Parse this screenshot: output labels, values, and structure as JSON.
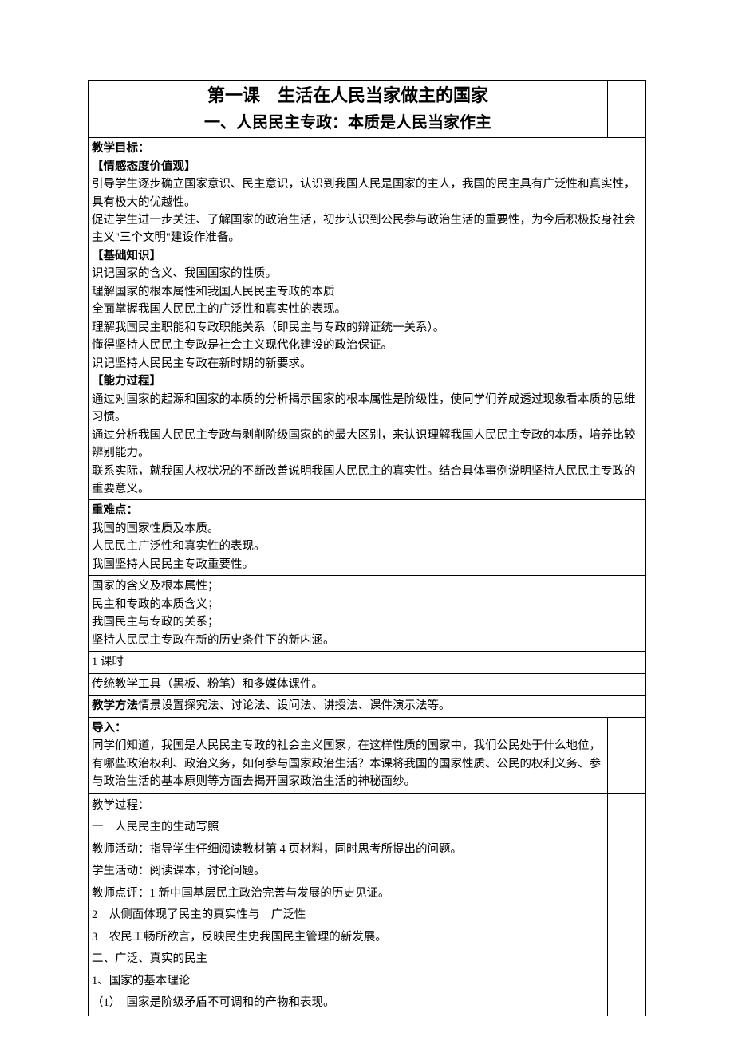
{
  "title": {
    "line1": "第一课　生活在人民当家做主的国家",
    "line2": "一、人民民主专政：本质是人民当家作主"
  },
  "sections": {
    "goals_heading": "教学目标：",
    "attitude_heading": "【情感态度价值观】",
    "attitude_p1": "引导学生逐步确立国家意识、民主意识，认识到我国人民是国家的主人，我国的民主具有广泛性和真实性，具有极大的优越性。",
    "attitude_p2": "促进学生进一步关注、了解国家的政治生活，初步认识到公民参与政治生活的重要性，为今后积极投身社会主义\"三个文明\"建设作准备。",
    "basic_heading": "【基础知识】",
    "basic_p1": "识记国家的含义、我国国家的性质。",
    "basic_p2": "理解国家的根本属性和我国人民民主专政的本质",
    "basic_p3": "全面掌握我国人民民主的广泛性和真实性的表现。",
    "basic_p4": "理解我国民主职能和专政职能关系（即民主与专政的辩证统一关系）。",
    "basic_p5": "懂得坚持人民民主专政是社会主义现代化建设的政治保证。",
    "basic_p6": "识记坚持人民民主专政在新时期的新要求。",
    "ability_heading": "【能力过程】",
    "ability_p1": "通过对国家的起源和国家的本质的分析揭示国家的根本属性是阶级性，使同学们养成透过现象看本质的思维习惯。",
    "ability_p2": "通过分析我国人民民主专政与剥削阶级国家的的最大区别，来认识理解我国人民民主专政的本质，培养比较辨别能力。",
    "ability_p3": "联系实际，就我国人权状况的不断改善说明我国人民民主的真实性。结合具体事例说明坚持人民民主专政的重要意义。",
    "keypoints_heading": "重难点：",
    "keypoints_p1": "我国的国家性质及本质。",
    "keypoints_p2": "人民民主广泛性和真实性的表现。",
    "keypoints_p3": "我国坚持人民民主专政重要性。",
    "concepts_p1": "国家的含义及根本属性；",
    "concepts_p2": "民主和专政的本质含义；",
    "concepts_p3": "我国民主与专政的关系；",
    "concepts_p4": "坚持人民民主专政在新的历史条件下的新内涵。",
    "hours": "1 课时",
    "tools": "传统教学工具（黑板、粉笔）和多媒体课件。",
    "methods_label": "教学方法",
    "methods_text": "情景设置探究法、讨论法、设问法、讲授法、课件演示法等。",
    "intro_heading": "导入：",
    "intro_p1": "同学们知道，我国是人民民主专政的社会主义国家，在这样性质的国家中，我们公民处于什么地位，有哪些政治权利、政治义务，如何参与国家政治生活？本课将我国的国家性质、公民的权利义务、参与政治生活的基本原则等方面去揭开国家政治生活的神秘面纱。",
    "process_heading": "教学过程：",
    "process_p1": "一　人民民主的生动写照",
    "process_p2": "教师活动：指导学生仔细阅读教材第 4 页材料，同时思考所提出的问题。",
    "process_p3": "学生活动：阅读课本，讨论问题。",
    "process_p4": "教师点评：1 新中国基层民主政治完善与发展的历史见证。",
    "process_p5": "2　从侧面体现了民主的真实性与　广泛性",
    "process_p6": "3　农民工畅所欲言，反映民生史我国民主管理的新发展。",
    "process_p7": "二、广泛、真实的民主",
    "process_p8": "1、国家的基本理论",
    "process_p9": "（1）　国家是阶级矛盾不可调和的产物和表现。"
  }
}
